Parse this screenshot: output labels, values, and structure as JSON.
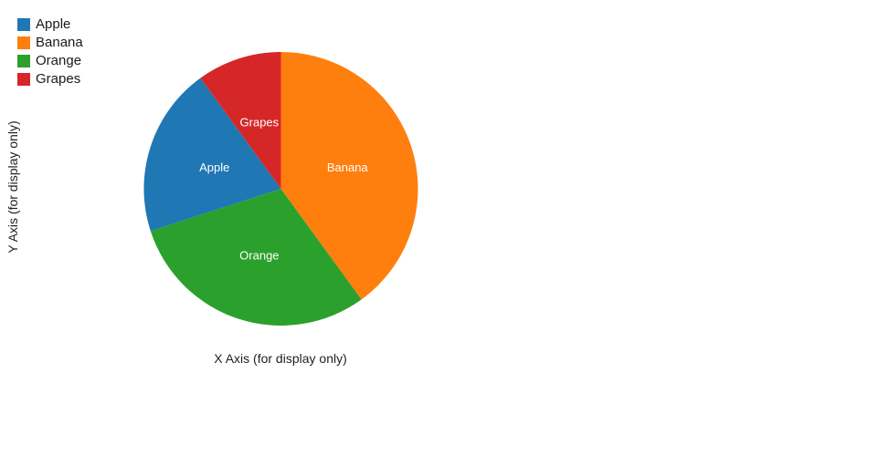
{
  "page": {
    "background": "#ffffff"
  },
  "legend": {
    "position": "top-left",
    "items": [
      {
        "label": "Apple",
        "color": "#1f77b4"
      },
      {
        "label": "Banana",
        "color": "#ff7f0e"
      },
      {
        "label": "Orange",
        "color": "#2ca02c"
      },
      {
        "label": "Grapes",
        "color": "#d62728"
      }
    ]
  },
  "axes": {
    "x_label": "X Axis (for display only)",
    "y_label": "Y Axis (for display only)"
  },
  "chart_data": {
    "type": "pie",
    "title": "",
    "categories": [
      "Apple",
      "Banana",
      "Orange",
      "Grapes"
    ],
    "values": [
      20,
      40,
      30,
      10
    ],
    "unit": "percent",
    "colors": [
      "#1f77b4",
      "#ff7f0e",
      "#2ca02c",
      "#d62728"
    ],
    "xlabel": "X Axis (for display only)",
    "ylabel": "Y Axis (for display only)",
    "legend_position": "top-left",
    "display": {
      "start_angle_deg": 0,
      "direction": "clockwise",
      "slice_order": [
        "Banana",
        "Orange",
        "Apple",
        "Grapes"
      ],
      "labels_inside": true,
      "label_color": "#ffffff"
    }
  }
}
